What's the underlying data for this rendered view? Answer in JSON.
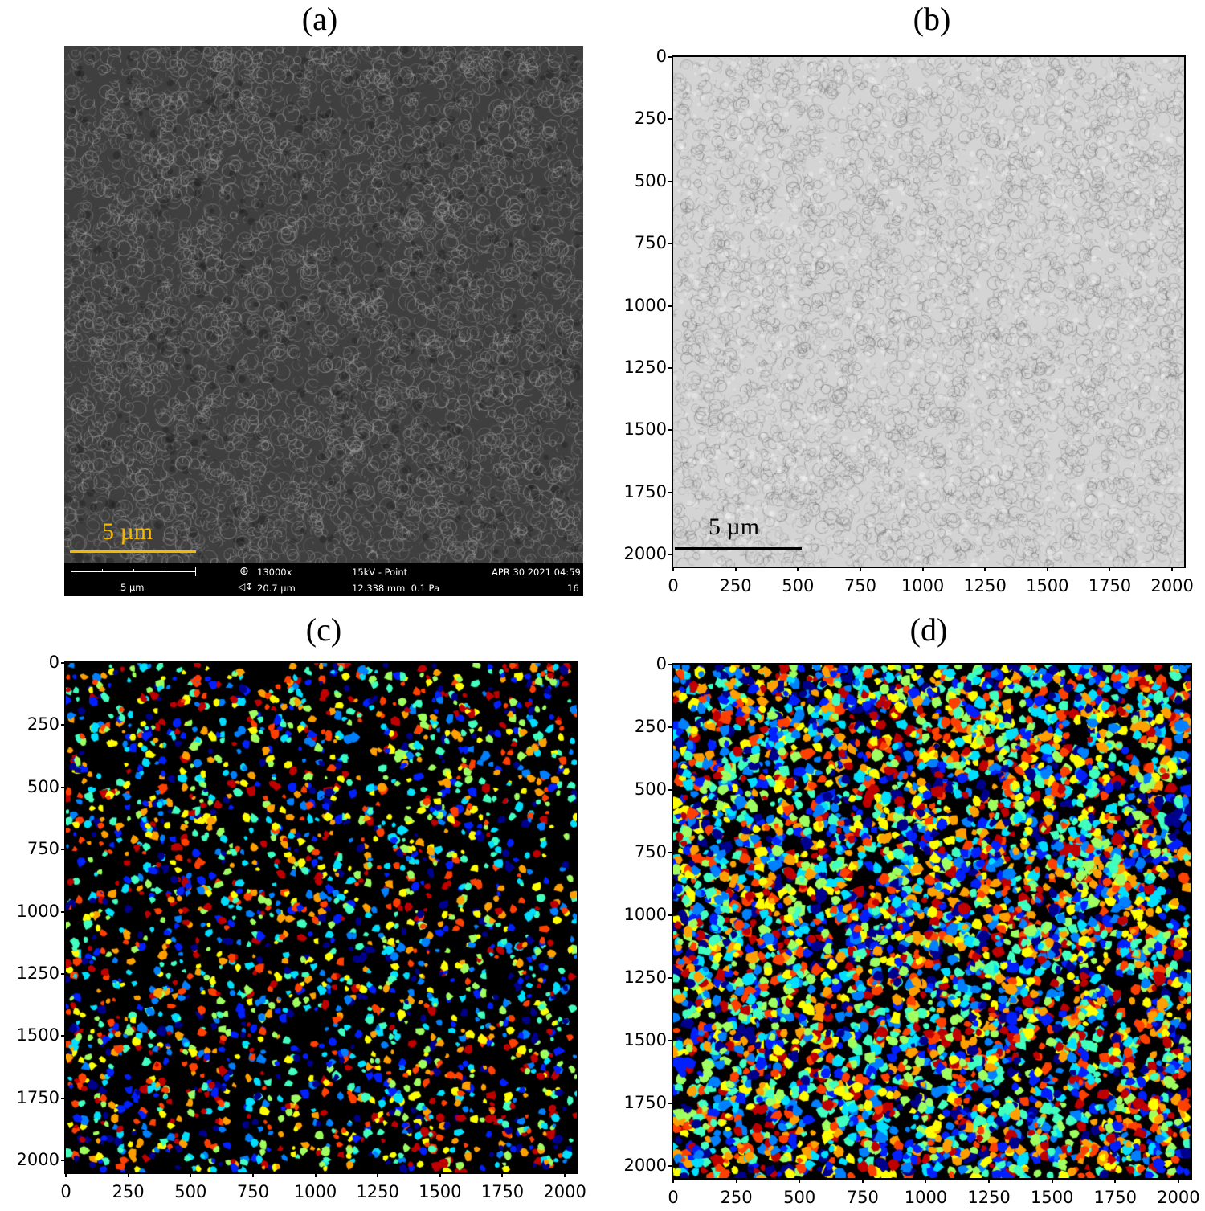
{
  "panels": {
    "a": {
      "label": "(a)"
    },
    "b": {
      "label": "(b)"
    },
    "c": {
      "label": "(c)"
    },
    "d": {
      "label": "(d)"
    }
  },
  "scale_bar": {
    "label": "5 µm",
    "color_a": "#f5b800",
    "color_b": "#000000"
  },
  "sem_info": {
    "scale": "5 µm",
    "magnification": "13000x",
    "field_width": "20.7 µm",
    "voltage_mode": "15kV - Point",
    "working_distance_pressure": "12.338 mm  0.1 Pa",
    "datetime": "APR 30 2021 04:59",
    "number": "16"
  },
  "axes": {
    "ticks": [
      "0",
      "250",
      "500",
      "750",
      "1000",
      "1250",
      "1500",
      "1750",
      "2000"
    ],
    "tick_values": [
      0,
      250,
      500,
      750,
      1000,
      1250,
      1500,
      1750,
      2000
    ],
    "range": [
      0,
      2048
    ]
  },
  "colors": {
    "sem_bg": "#3f3f3f",
    "gray_bg": "#d4d4d4",
    "label_bg": "#000000",
    "jet": [
      "#00008f",
      "#0020ff",
      "#0080ff",
      "#00dfff",
      "#40ffbf",
      "#9fff60",
      "#ffff00",
      "#ffa000",
      "#ff4000",
      "#c00000"
    ]
  }
}
